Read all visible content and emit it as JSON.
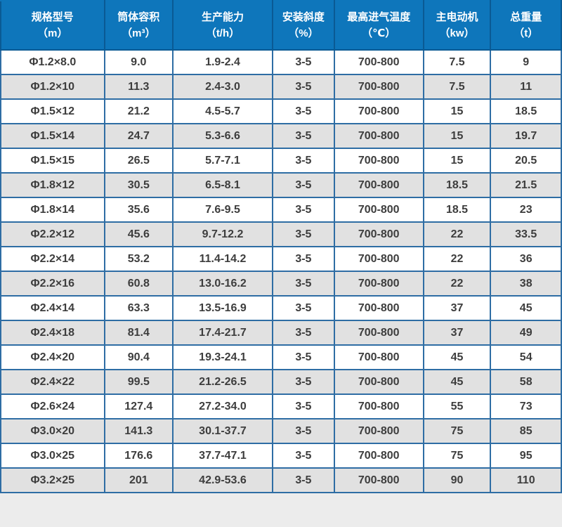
{
  "table": {
    "headers": [
      {
        "title": "规格型号",
        "unit": "（m）"
      },
      {
        "title": "筒体容积",
        "unit": "（m³）"
      },
      {
        "title": "生产能力",
        "unit": "（t/h）"
      },
      {
        "title": "安装斜度",
        "unit": "（%）"
      },
      {
        "title": "最高进气温度",
        "unit": "（℃）"
      },
      {
        "title": "主电动机",
        "unit": "（kw）"
      },
      {
        "title": "总重量",
        "unit": "（t）"
      }
    ],
    "rows": [
      [
        "Φ1.2×8.0",
        "9.0",
        "1.9-2.4",
        "3-5",
        "700-800",
        "7.5",
        "9"
      ],
      [
        "Φ1.2×10",
        "11.3",
        "2.4-3.0",
        "3-5",
        "700-800",
        "7.5",
        "11"
      ],
      [
        "Φ1.5×12",
        "21.2",
        "4.5-5.7",
        "3-5",
        "700-800",
        "15",
        "18.5"
      ],
      [
        "Φ1.5×14",
        "24.7",
        "5.3-6.6",
        "3-5",
        "700-800",
        "15",
        "19.7"
      ],
      [
        "Φ1.5×15",
        "26.5",
        "5.7-7.1",
        "3-5",
        "700-800",
        "15",
        "20.5"
      ],
      [
        "Φ1.8×12",
        "30.5",
        "6.5-8.1",
        "3-5",
        "700-800",
        "18.5",
        "21.5"
      ],
      [
        "Φ1.8×14",
        "35.6",
        "7.6-9.5",
        "3-5",
        "700-800",
        "18.5",
        "23"
      ],
      [
        "Φ2.2×12",
        "45.6",
        "9.7-12.2",
        "3-5",
        "700-800",
        "22",
        "33.5"
      ],
      [
        "Φ2.2×14",
        "53.2",
        "11.4-14.2",
        "3-5",
        "700-800",
        "22",
        "36"
      ],
      [
        "Φ2.2×16",
        "60.8",
        "13.0-16.2",
        "3-5",
        "700-800",
        "22",
        "38"
      ],
      [
        "Φ2.4×14",
        "63.3",
        "13.5-16.9",
        "3-5",
        "700-800",
        "37",
        "45"
      ],
      [
        "Φ2.4×18",
        "81.4",
        "17.4-21.7",
        "3-5",
        "700-800",
        "37",
        "49"
      ],
      [
        "Φ2.4×20",
        "90.4",
        "19.3-24.1",
        "3-5",
        "700-800",
        "45",
        "54"
      ],
      [
        "Φ2.4×22",
        "99.5",
        "21.2-26.5",
        "3-5",
        "700-800",
        "45",
        "58"
      ],
      [
        "Φ2.6×24",
        "127.4",
        "27.2-34.0",
        "3-5",
        "700-800",
        "55",
        "73"
      ],
      [
        "Φ3.0×20",
        "141.3",
        "30.1-37.7",
        "3-5",
        "700-800",
        "75",
        "85"
      ],
      [
        "Φ3.0×25",
        "176.6",
        "37.7-47.1",
        "3-5",
        "700-800",
        "75",
        "95"
      ],
      [
        "Φ3.2×25",
        "201",
        "42.9-53.6",
        "3-5",
        "700-800",
        "90",
        "110"
      ]
    ]
  },
  "colors": {
    "header_bg": "#0e76bb",
    "header_border": "#0a5a94",
    "body_border": "#2e6da4",
    "row_alt_bg": "#e1e1e1",
    "row_bg": "#ffffff",
    "body_text": "#3d3d3d",
    "page_bg": "#ececec"
  }
}
